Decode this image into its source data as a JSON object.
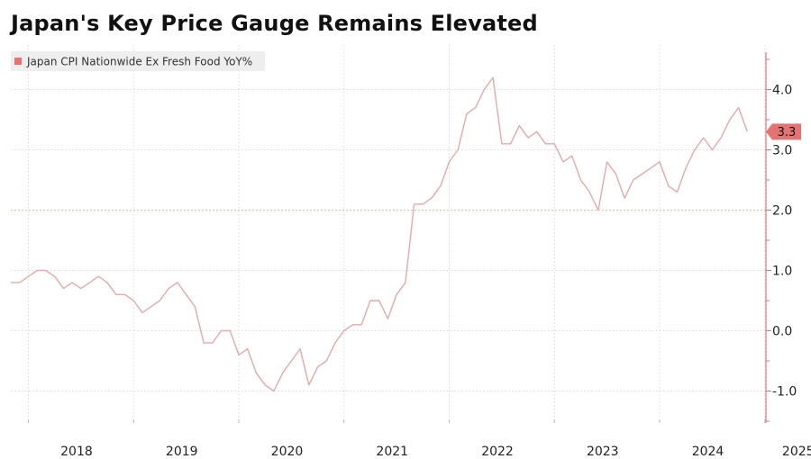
{
  "title": "Japan's Key Price Gauge Remains Elevated",
  "legend": {
    "label": "Japan CPI Nationwide Ex Fresh Food YoY%"
  },
  "last_value_label": "3.3",
  "colors": {
    "line": "#e7a8a6",
    "legend_swatch": "#e57373",
    "callout_fill": "#e57373",
    "axis": "#e57373",
    "grid": "#d9d9d9",
    "reference": "#d6cf9a"
  },
  "chart_data": {
    "type": "line",
    "title": "Japan's Key Price Gauge Remains Elevated",
    "xlabel": "",
    "ylabel": "",
    "x_ticks": [
      "2018",
      "2019",
      "2020",
      "2021",
      "2022",
      "2023",
      "2024",
      "2025"
    ],
    "y_ticks": [
      "4.0",
      "3.0",
      "2.0",
      "1.0",
      "0.0",
      "-1.0"
    ],
    "y_tick_values": [
      4,
      3,
      2,
      1,
      0,
      -1
    ],
    "ylim": [
      -1.5,
      4.6
    ],
    "reference_line": 2.0,
    "grid": true,
    "legend_position": "top-left",
    "series": [
      {
        "name": "Japan CPI Nationwide Ex Fresh Food YoY%",
        "start": "2017-11",
        "frequency": "monthly",
        "values": [
          0.8,
          0.8,
          0.9,
          1.0,
          1.0,
          0.9,
          0.7,
          0.8,
          0.7,
          0.8,
          0.9,
          0.8,
          0.6,
          0.6,
          0.5,
          0.3,
          0.4,
          0.5,
          0.7,
          0.8,
          0.6,
          0.4,
          -0.2,
          -0.2,
          0.0,
          0.0,
          -0.4,
          -0.3,
          -0.7,
          -0.9,
          -1.0,
          -0.7,
          -0.5,
          -0.3,
          -0.9,
          -0.6,
          -0.5,
          -0.2,
          0.0,
          0.1,
          0.1,
          0.5,
          0.5,
          0.2,
          0.6,
          0.8,
          2.1,
          2.1,
          2.2,
          2.4,
          2.8,
          3.0,
          3.6,
          3.7,
          4.0,
          4.2,
          3.1,
          3.1,
          3.4,
          3.2,
          3.3,
          3.1,
          3.1,
          2.8,
          2.9,
          2.5,
          2.3,
          2.0,
          2.8,
          2.6,
          2.2,
          2.5,
          2.6,
          2.7,
          2.8,
          2.4,
          2.3,
          2.7,
          3.0,
          3.2,
          3.0,
          3.2,
          3.5,
          3.7,
          3.3
        ]
      }
    ]
  }
}
